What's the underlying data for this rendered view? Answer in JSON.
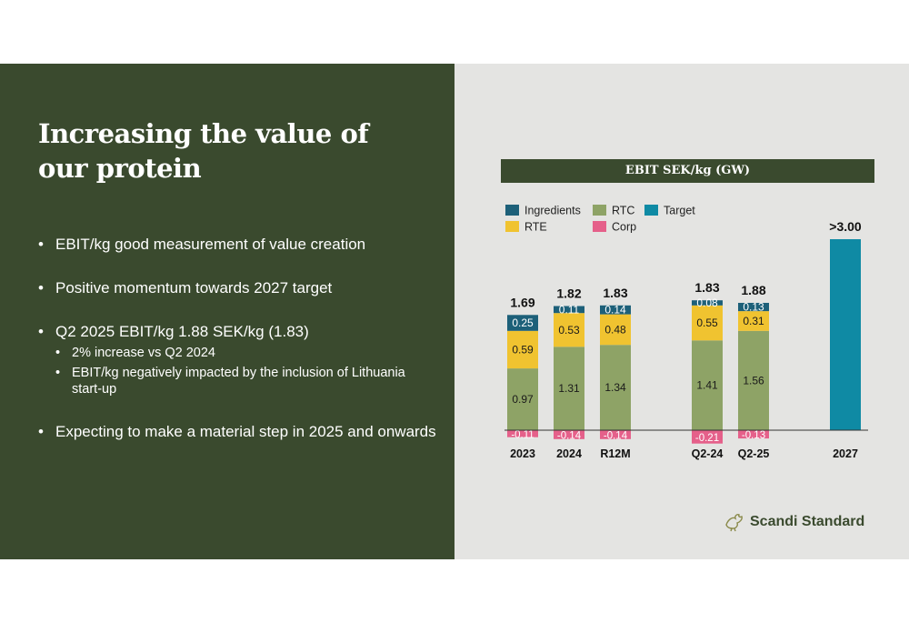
{
  "slide": {
    "title": "Increasing the value of our protein",
    "bullets": [
      "EBIT/kg good measurement of value creation",
      "Positive momentum towards 2027 target",
      "Q2 2025 EBIT/kg 1.88 SEK/kg (1.83)",
      "Expecting to make a material step in 2025 and onwards"
    ],
    "sub_bullets": [
      "2% increase vs Q2 2024",
      "EBIT/kg negatively impacted by the inclusion of Lithuania start-up"
    ]
  },
  "logo": {
    "text": "Scandi Standard",
    "icon": "rooster-icon"
  },
  "chart_data": {
    "type": "bar",
    "stacked": true,
    "title": "EBIT SEK/kg (GW)",
    "categories": [
      "2023",
      "2024",
      "R12M",
      "Q2-24",
      "Q2-25",
      "2027"
    ],
    "totals": [
      "1.69",
      "1.82",
      "1.83",
      "1.83",
      "1.88",
      ">3.00"
    ],
    "series": [
      {
        "name": "RTC",
        "color": "#8ea366",
        "values": [
          0.97,
          1.31,
          1.34,
          1.41,
          1.56,
          null
        ]
      },
      {
        "name": "RTE",
        "color": "#f0c330",
        "values": [
          0.59,
          0.53,
          0.48,
          0.55,
          0.31,
          null
        ]
      },
      {
        "name": "Ingredients",
        "color": "#1d6079",
        "values": [
          0.25,
          0.11,
          0.14,
          0.08,
          0.13,
          null
        ]
      },
      {
        "name": "Corp",
        "color": "#e5608a",
        "values": [
          -0.11,
          -0.14,
          -0.14,
          -0.21,
          -0.13,
          null
        ]
      },
      {
        "name": "Target",
        "color": "#0f8aa4",
        "values": [
          null,
          null,
          null,
          null,
          null,
          3.0
        ]
      }
    ],
    "legend_rows": [
      [
        "Ingredients",
        "RTC",
        "Target"
      ],
      [
        "RTE",
        "Corp"
      ]
    ],
    "legend_position": "top-left",
    "ylim": [
      -0.21,
      3.0
    ],
    "grid": false
  }
}
